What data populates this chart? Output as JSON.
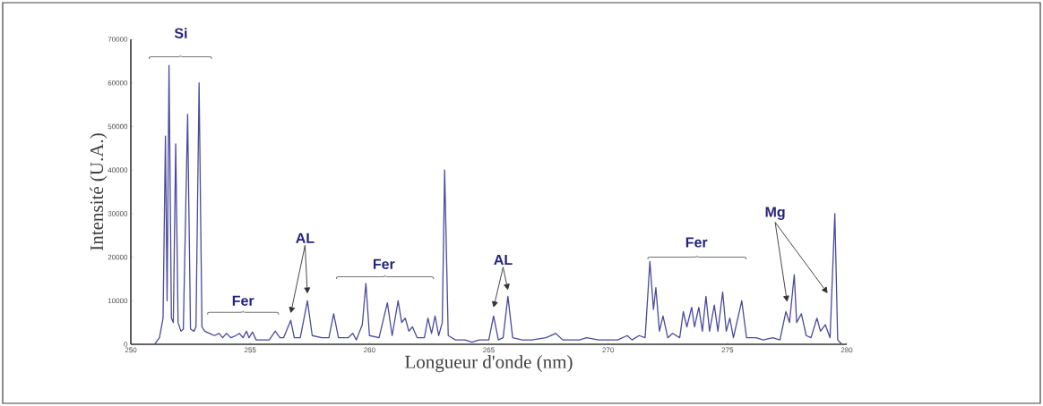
{
  "chart_data": {
    "type": "line",
    "xlabel": "Longueur d'onde (nm)",
    "ylabel": "Intensité (U.A.)",
    "xlim": [
      250,
      280
    ],
    "xticks": [
      250,
      255,
      260,
      265,
      270,
      275,
      280
    ],
    "ylim": [
      0,
      70000
    ],
    "yticks": [
      0,
      10000,
      20000,
      30000,
      40000,
      50000,
      60000,
      70000
    ],
    "grid": false,
    "marker": "none",
    "line_style": "solid",
    "series": [
      {
        "color": "#4a4a9c",
        "x": [
          251.0,
          251.2,
          251.35,
          251.45,
          251.52,
          251.6,
          251.7,
          251.78,
          251.88,
          251.98,
          252.1,
          252.2,
          252.38,
          252.5,
          252.65,
          252.73,
          252.86,
          252.98,
          253.1,
          253.3,
          253.5,
          253.7,
          253.85,
          254.0,
          254.2,
          254.4,
          254.55,
          254.7,
          254.85,
          254.95,
          255.1,
          255.25,
          255.5,
          255.8,
          256.05,
          256.25,
          256.4,
          256.7,
          256.85,
          257.1,
          257.4,
          257.6,
          258.0,
          258.3,
          258.5,
          258.7,
          259.1,
          259.3,
          259.45,
          259.7,
          259.85,
          260.0,
          260.4,
          260.75,
          260.95,
          261.2,
          261.35,
          261.5,
          261.65,
          261.8,
          262.0,
          262.3,
          262.45,
          262.6,
          262.75,
          262.9,
          263.05,
          263.15,
          263.3,
          263.6,
          264.0,
          264.3,
          264.6,
          265.0,
          265.2,
          265.4,
          265.6,
          265.8,
          266.0,
          266.4,
          266.8,
          267.4,
          267.8,
          268.1,
          268.8,
          269.1,
          269.6,
          270.4,
          270.8,
          271.0,
          271.3,
          271.55,
          271.75,
          271.9,
          272.0,
          272.15,
          272.3,
          272.5,
          272.7,
          273.0,
          273.15,
          273.3,
          273.5,
          273.62,
          273.8,
          273.95,
          274.1,
          274.25,
          274.45,
          274.6,
          274.8,
          274.95,
          275.1,
          275.25,
          275.6,
          275.8,
          276.2,
          276.5,
          276.9,
          277.2,
          277.45,
          277.6,
          277.8,
          277.9,
          278.1,
          278.3,
          278.5,
          278.75,
          278.9,
          279.1,
          279.3,
          279.5,
          279.62,
          279.8
        ],
        "values": [
          0,
          1500,
          6000,
          47800,
          10000,
          64000,
          6000,
          5000,
          46000,
          5000,
          3000,
          3500,
          52800,
          3500,
          3000,
          4000,
          60000,
          4000,
          3000,
          2500,
          2000,
          2500,
          1500,
          2500,
          1500,
          2000,
          2500,
          1500,
          3000,
          1500,
          2800,
          1000,
          1000,
          1000,
          3000,
          1500,
          1500,
          5500,
          1500,
          1500,
          10000,
          2000,
          1500,
          1500,
          7000,
          1500,
          1500,
          2500,
          1000,
          4500,
          14000,
          2000,
          1500,
          9500,
          2000,
          10000,
          5000,
          6000,
          3000,
          4000,
          1500,
          1500,
          6000,
          2500,
          6500,
          2000,
          5000,
          40000,
          2000,
          1000,
          1000,
          500,
          1000,
          1000,
          6500,
          1000,
          1500,
          11000,
          1500,
          1000,
          1000,
          1500,
          2500,
          1000,
          1000,
          1500,
          1000,
          1000,
          2000,
          1000,
          2000,
          1500,
          19000,
          8000,
          13000,
          3000,
          6500,
          1500,
          2500,
          1500,
          7500,
          4000,
          8500,
          4000,
          8500,
          3000,
          11000,
          3000,
          9000,
          3000,
          12000,
          3000,
          6000,
          1500,
          10000,
          1500,
          1500,
          1000,
          1500,
          1000,
          7500,
          5000,
          16000,
          5000,
          7000,
          2000,
          1500,
          6000,
          3000,
          4500,
          1500,
          30000,
          1000,
          0
        ]
      }
    ],
    "annotations": [
      "Si",
      "Fer",
      "AL",
      "Fer",
      "AL",
      "Fer",
      "Mg"
    ]
  }
}
